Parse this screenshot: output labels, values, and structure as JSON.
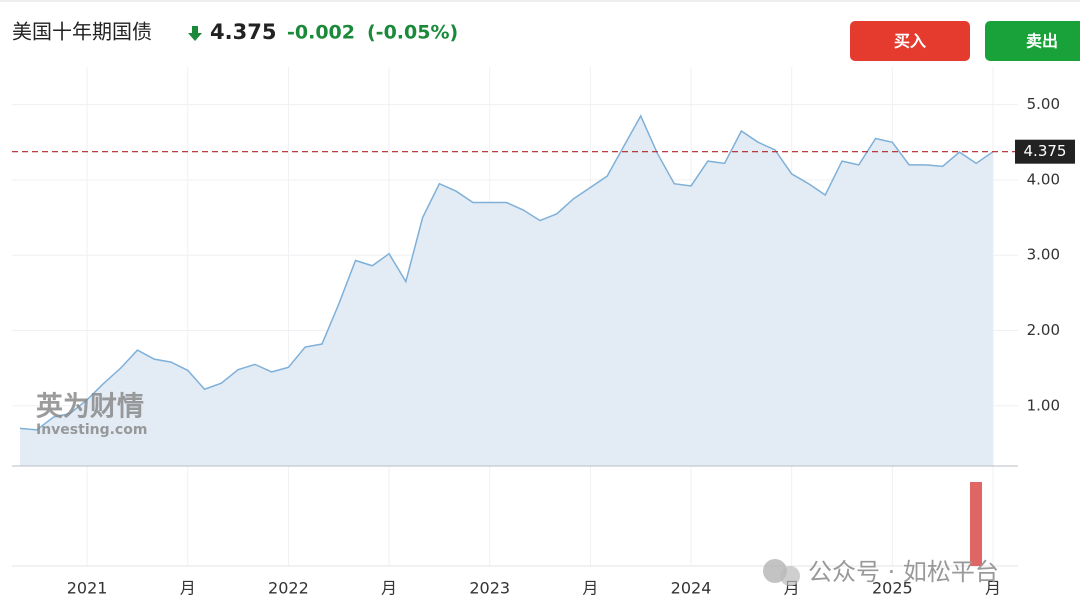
{
  "chart_data": {
    "type": "area",
    "title": "美国十年期国债",
    "price": "4.375",
    "change": "-0.002",
    "change_pct": "(-0.05%)",
    "buttons": [
      "买入",
      "卖出"
    ],
    "watermark": [
      "英为财情",
      "Investing.com"
    ],
    "footer_watermark": "公众号 · 如松平台",
    "categories": [
      null,
      null,
      null,
      null,
      "2021",
      null,
      null,
      null,
      null,
      null,
      "月",
      null,
      null,
      null,
      null,
      null,
      "2022",
      null,
      null,
      null,
      null,
      null,
      "月",
      null,
      null,
      null,
      null,
      null,
      "2023",
      null,
      null,
      null,
      null,
      null,
      "月",
      null,
      null,
      null,
      null,
      null,
      "2024",
      null,
      null,
      null,
      null,
      null,
      "月",
      null,
      null,
      null,
      null,
      null,
      "2025",
      null,
      null,
      null,
      null,
      null,
      "月"
    ],
    "values": [
      0.7,
      0.68,
      0.85,
      0.9,
      1.08,
      1.3,
      1.5,
      1.74,
      1.62,
      1.58,
      1.47,
      1.22,
      1.3,
      1.48,
      1.55,
      1.45,
      1.51,
      1.78,
      1.82,
      2.35,
      2.93,
      2.86,
      3.02,
      2.65,
      3.5,
      3.95,
      3.85,
      3.7,
      3.7,
      3.7,
      3.6,
      3.46,
      3.55,
      3.75,
      3.9,
      4.05,
      4.45,
      4.85,
      4.35,
      3.95,
      3.92,
      4.25,
      4.22,
      4.65,
      4.5,
      4.4,
      4.08,
      3.95,
      3.8,
      4.25,
      4.2,
      4.55,
      4.5,
      4.2,
      4.2,
      4.18,
      4.37,
      4.22,
      4.375
    ],
    "color": "#7fb0d8",
    "fill": "#e3ecf5",
    "marker_color": "#b22222",
    "ylim": [
      0.2,
      5.5
    ],
    "yticks": [
      {
        "value": 1,
        "label": "1.00"
      },
      {
        "value": 2,
        "label": "2.00"
      },
      {
        "value": 3,
        "label": "3.00"
      },
      {
        "value": 4,
        "label": "4.00"
      },
      {
        "value": 5,
        "label": "5.00"
      }
    ],
    "grid": true
  }
}
